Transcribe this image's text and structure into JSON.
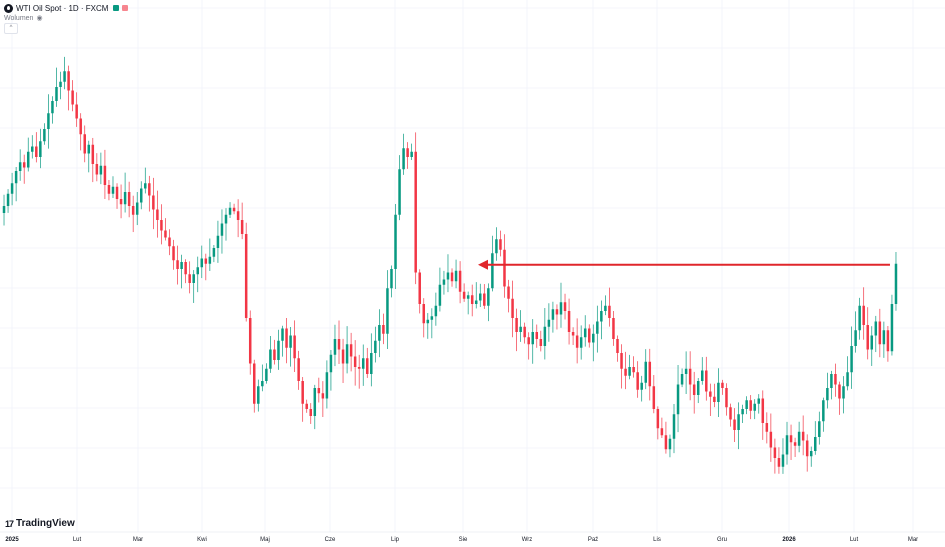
{
  "legend": {
    "symbol_title": "WTI Oil Spot · 1D · FXCM",
    "volume_label": "Wolumen",
    "collapse_glyph": "^"
  },
  "branding": {
    "logo_text": "TradingView",
    "logo_mark": "17"
  },
  "colors": {
    "up": "#089981",
    "down": "#f23645",
    "grid": "#f0f3fa",
    "arrow": "#e0262b"
  },
  "chart_data": {
    "type": "candlestick",
    "title": "WTI Oil Spot · 1D · FXCM",
    "x_tick_labels": [
      "2025",
      "Lut",
      "Mar",
      "Kwi",
      "Maj",
      "Cze",
      "Lip",
      "Sie",
      "Wrz",
      "Paź",
      "Lis",
      "Gru",
      "2026",
      "Lut",
      "Mar"
    ],
    "ylim": [
      55.0,
      81.0
    ],
    "price_axis_visible": false,
    "grid": true,
    "closes": [
      71.8,
      72.5,
      73.1,
      73.8,
      74.3,
      74.0,
      74.9,
      75.2,
      74.6,
      75.5,
      76.2,
      77.1,
      77.8,
      78.6,
      78.9,
      79.5,
      78.4,
      77.6,
      76.8,
      75.9,
      74.8,
      75.3,
      74.2,
      73.6,
      74.1,
      73.0,
      72.5,
      72.9,
      72.2,
      71.9,
      72.6,
      71.8,
      71.3,
      72.0,
      72.8,
      73.1,
      72.4,
      71.6,
      71.0,
      70.4,
      70.0,
      69.5,
      68.7,
      68.2,
      68.6,
      67.9,
      67.4,
      67.9,
      68.3,
      68.8,
      68.5,
      68.9,
      69.4,
      70.1,
      70.8,
      71.3,
      71.7,
      71.5,
      71.0,
      70.2,
      65.4,
      62.8,
      60.5,
      61.5,
      61.8,
      62.5,
      63.6,
      63.0,
      64.1,
      64.8,
      63.7,
      64.4,
      63.1,
      61.8,
      60.5,
      60.2,
      59.8,
      61.4,
      61.1,
      60.8,
      62.3,
      63.3,
      64.2,
      63.6,
      62.8,
      63.9,
      63.2,
      62.6,
      62.5,
      63.1,
      62.2,
      63.4,
      64.1,
      65.0,
      64.5,
      67.1,
      68.2,
      71.3,
      73.9,
      75.1,
      74.6,
      74.9,
      68.0,
      66.2,
      65.1,
      65.3,
      65.5,
      66.1,
      67.3,
      67.6,
      68.0,
      67.5,
      68.1,
      66.9,
      66.5,
      66.7,
      66.2,
      66.4,
      66.8,
      66.1,
      67.1,
      69.1,
      69.9,
      69.3,
      67.2,
      66.5,
      65.4,
      64.6,
      64.9,
      64.3,
      63.9,
      64.6,
      64.2,
      63.8,
      64.9,
      65.3,
      65.9,
      65.6,
      66.3,
      65.8,
      64.6,
      64.4,
      63.7,
      64.3,
      64.8,
      64.0,
      64.5,
      65.2,
      65.8,
      66.1,
      65.4,
      64.2,
      63.4,
      62.5,
      62.1,
      62.6,
      62.3,
      61.3,
      61.7,
      62.9,
      61.5,
      60.2,
      59.1,
      58.7,
      57.9,
      58.5,
      59.9,
      61.6,
      62.2,
      62.5,
      61.6,
      61.0,
      61.8,
      62.4,
      61.2,
      60.9,
      60.6,
      61.7,
      61.4,
      60.3,
      59.6,
      59.0,
      59.9,
      60.2,
      60.7,
      60.1,
      60.5,
      60.8,
      59.4,
      58.9,
      58.0,
      57.4,
      56.9,
      57.6,
      58.7,
      58.3,
      58.1,
      58.9,
      58.4,
      57.5,
      57.8,
      58.6,
      59.5,
      60.7,
      61.4,
      62.2,
      61.6,
      60.8,
      61.5,
      62.3,
      63.8,
      64.7,
      66.1,
      65.0,
      63.6,
      64.4,
      65.2,
      63.9,
      64.7,
      63.5,
      66.2,
      68.5
    ]
  }
}
